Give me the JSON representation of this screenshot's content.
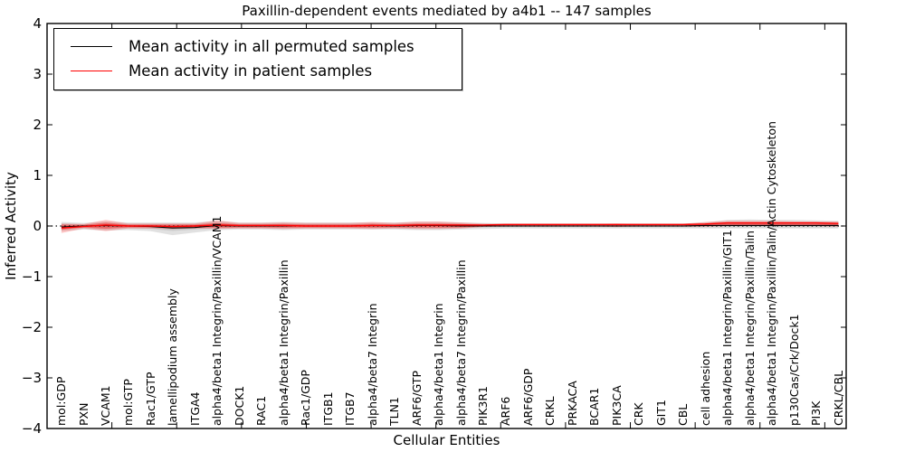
{
  "title": "Paxillin-dependent events mediated by a4b1 -- 147 samples",
  "legend": {
    "items": [
      {
        "label": "Mean activity in all permuted samples",
        "color": "#000000"
      },
      {
        "label": "Mean activity in patient samples",
        "color": "#ff0000"
      }
    ]
  },
  "axes": {
    "ylabel": "Inferred Activity",
    "xlabel": "Cellular Entities",
    "ytick_labels": [
      "−4",
      "−3",
      "−2",
      "−1",
      "0",
      "1",
      "2",
      "3",
      "4"
    ],
    "yticks": [
      -4,
      -3,
      -2,
      -1,
      0,
      1,
      2,
      3,
      4
    ]
  },
  "chart_data": {
    "type": "line",
    "title": "Paxillin-dependent events mediated by a4b1 -- 147 samples",
    "xlabel": "Cellular Entities",
    "ylabel": "Inferred Activity",
    "ylim": [
      -4,
      4
    ],
    "grid": false,
    "legend_position": "upper left",
    "zero_line": 0,
    "categories": [
      "mol:GDP",
      "PXN",
      "VCAM1",
      "mol:GTP",
      "Rac1/GTP",
      "lamellipodium assembly",
      "ITGA4",
      "alpha4/beta1 Integrin/Paxillin/VCAM1",
      "DOCK1",
      "RAC1",
      "alpha4/beta1 Integrin/Paxillin",
      "Rac1/GDP",
      "ITGB1",
      "ITGB7",
      "alpha4/beta7 Integrin",
      "TLN1",
      "ARF6/GTP",
      "alpha4/beta1 Integrin",
      "alpha4/beta7 Integrin/Paxillin",
      "PIK3R1",
      "ARF6",
      "ARF6/GDP",
      "CRKL",
      "PRKACA",
      "BCAR1",
      "PIK3CA",
      "CRK",
      "GIT1",
      "CBL",
      "cell adhesion",
      "alpha4/beta1 Integrin/Paxillin/GIT1",
      "alpha4/beta1 Integrin/Paxillin/Talin",
      "alpha4/beta1 Integrin/Paxillin/Talin/Actin Cytoskeleton",
      "p130Cas/Crk/Dock1",
      "PI3K",
      "CRKL/CBL"
    ],
    "series": [
      {
        "name": "Mean activity in all permuted samples",
        "color": "#000000",
        "values": [
          -0.02,
          0,
          0.01,
          0,
          -0.01,
          -0.04,
          -0.03,
          0.01,
          0,
          0,
          0,
          0,
          0,
          0,
          0.01,
          0,
          0.01,
          0.01,
          0,
          0,
          0,
          0,
          0,
          0,
          0,
          0,
          0,
          0,
          0,
          0.01,
          0.01,
          0.01,
          0.01,
          0.01,
          0.01,
          0.01
        ]
      },
      {
        "name": "Mean activity in patient samples",
        "color": "#ff0000",
        "values": [
          -0.04,
          -0.01,
          0.02,
          0,
          0,
          -0.01,
          0,
          0.02,
          0.01,
          0.01,
          0.01,
          0,
          0,
          0,
          0.01,
          0.01,
          0.02,
          0.02,
          0.02,
          0.02,
          0.03,
          0.03,
          0.03,
          0.03,
          0.03,
          0.03,
          0.03,
          0.03,
          0.03,
          0.04,
          0.06,
          0.06,
          0.06,
          0.06,
          0.06,
          0.05
        ]
      }
    ],
    "bands": [
      {
        "name": "permuted-samples-envelope",
        "color": "#9a9a9a",
        "upper": [
          0.08,
          0.06,
          0.09,
          0.07,
          0.07,
          0.07,
          0.07,
          0.1,
          0.07,
          0.07,
          0.08,
          0.07,
          0.07,
          0.07,
          0.07,
          0.07,
          0.08,
          0.08,
          0.07,
          0.06,
          0.05,
          0.05,
          0.05,
          0.05,
          0.05,
          0.05,
          0.05,
          0.05,
          0.05,
          0.07,
          0.12,
          0.13,
          0.12,
          0.12,
          0.11,
          0.1
        ],
        "lower": [
          -0.1,
          -0.07,
          -0.09,
          -0.08,
          -0.1,
          -0.18,
          -0.13,
          -0.08,
          -0.07,
          -0.07,
          -0.08,
          -0.07,
          -0.07,
          -0.07,
          -0.07,
          -0.07,
          -0.08,
          -0.08,
          -0.07,
          -0.06,
          -0.05,
          -0.05,
          -0.05,
          -0.05,
          -0.05,
          -0.05,
          -0.05,
          -0.05,
          -0.05,
          -0.05,
          -0.05,
          -0.05,
          -0.05,
          -0.05,
          -0.05,
          -0.05
        ]
      },
      {
        "name": "patient-samples-envelope",
        "color": "#ff0000",
        "upper": [
          0.05,
          0.04,
          0.12,
          0.05,
          0.05,
          0.05,
          0.05,
          0.11,
          0.06,
          0.06,
          0.07,
          0.06,
          0.06,
          0.06,
          0.08,
          0.06,
          0.09,
          0.09,
          0.07,
          0.05,
          0.04,
          0.04,
          0.04,
          0.04,
          0.04,
          0.05,
          0.04,
          0.04,
          0.04,
          0.08,
          0.1,
          0.1,
          0.1,
          0.09,
          0.09,
          0.09
        ],
        "lower": [
          -0.14,
          -0.05,
          -0.1,
          -0.05,
          -0.05,
          -0.06,
          -0.05,
          -0.06,
          -0.05,
          -0.05,
          -0.06,
          -0.05,
          -0.05,
          -0.05,
          -0.06,
          -0.05,
          -0.06,
          -0.06,
          -0.05,
          -0.02,
          -0.01,
          -0.01,
          -0.01,
          -0.01,
          -0.01,
          -0.02,
          -0.01,
          -0.01,
          -0.01,
          -0.01,
          0,
          0,
          0,
          0,
          0,
          -0.01
        ]
      }
    ]
  }
}
